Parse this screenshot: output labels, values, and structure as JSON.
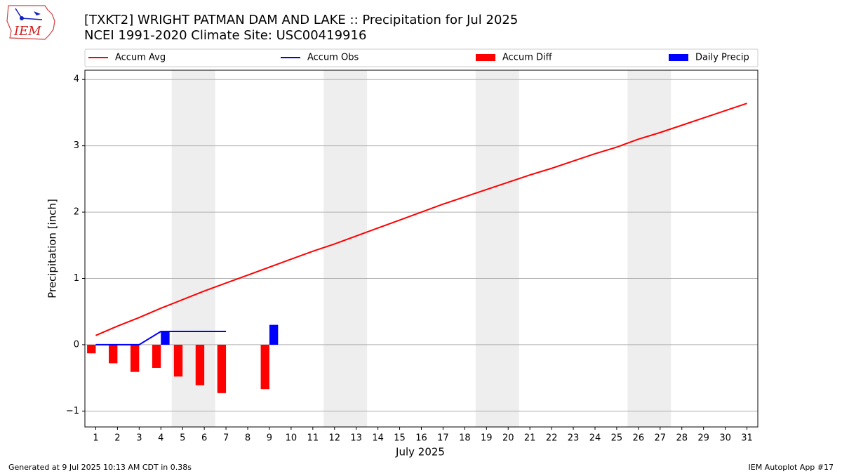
{
  "chart_data": {
    "type": "combo",
    "title": "[TXKT2] WRIGHT PATMAN DAM AND LAKE :: Precipitation for Jul 2025",
    "subtitle": "NCEI 1991-2020 Climate Site: USC00419916",
    "xlabel": "July 2025",
    "ylabel": "Precipitation [inch]",
    "x": [
      1,
      2,
      3,
      4,
      5,
      6,
      7,
      8,
      9,
      10,
      11,
      12,
      13,
      14,
      15,
      16,
      17,
      18,
      19,
      20,
      21,
      22,
      23,
      24,
      25,
      26,
      27,
      28,
      29,
      30,
      31
    ],
    "series": [
      {
        "name": "Accum Avg",
        "kind": "line",
        "color": "#ff0000",
        "values": [
          0.14,
          0.28,
          0.41,
          0.55,
          0.68,
          0.81,
          0.93,
          1.05,
          1.17,
          1.29,
          1.41,
          1.52,
          1.64,
          1.76,
          1.88,
          2.0,
          2.12,
          2.23,
          2.34,
          2.45,
          2.56,
          2.66,
          2.77,
          2.88,
          2.98,
          3.1,
          3.2,
          3.31,
          3.42,
          3.53,
          3.64
        ]
      },
      {
        "name": "Accum Obs",
        "kind": "line",
        "color": "#0000ff",
        "values": [
          0,
          0,
          0,
          0.2,
          0.2,
          0.2,
          0.2,
          null,
          null,
          null,
          null,
          null,
          null,
          null,
          null,
          null,
          null,
          null,
          null,
          null,
          null,
          null,
          null,
          null,
          null,
          null,
          null,
          null,
          null,
          null,
          null
        ]
      },
      {
        "name": "Accum Diff",
        "kind": "bar",
        "color": "#ff0000",
        "values": [
          -0.13,
          -0.28,
          -0.41,
          -0.35,
          -0.48,
          -0.61,
          -0.73,
          null,
          -0.67,
          null,
          null,
          null,
          null,
          null,
          null,
          null,
          null,
          null,
          null,
          null,
          null,
          null,
          null,
          null,
          null,
          null,
          null,
          null,
          null,
          null,
          null
        ]
      },
      {
        "name": "Daily Precip",
        "kind": "bar",
        "color": "#0000ff",
        "values": [
          0,
          0,
          0,
          0.2,
          0,
          0,
          0,
          0,
          0.3,
          null,
          null,
          null,
          null,
          null,
          null,
          null,
          null,
          null,
          null,
          null,
          null,
          null,
          null,
          null,
          null,
          null,
          null,
          null,
          null,
          null,
          null
        ]
      }
    ],
    "xlim": [
      0.5,
      31.5
    ],
    "xticks": [
      1,
      2,
      3,
      4,
      5,
      6,
      7,
      8,
      9,
      10,
      11,
      12,
      13,
      14,
      15,
      16,
      17,
      18,
      19,
      20,
      21,
      22,
      23,
      24,
      25,
      26,
      27,
      28,
      29,
      30,
      31
    ],
    "ylim": [
      -1.24,
      4.14
    ],
    "yticks": [
      {
        "value": -1,
        "label": "−1"
      },
      0,
      1,
      2,
      3,
      4
    ],
    "grid": true,
    "shaded_spans": [
      [
        4.5,
        6.5
      ],
      [
        11.5,
        13.5
      ],
      [
        18.5,
        20.5
      ],
      [
        25.5,
        27.5
      ]
    ],
    "legend": "top"
  },
  "logo_text": "IEM",
  "footer_left": "Generated at 9 Jul 2025 10:13 AM CDT in 0.38s",
  "footer_right": "IEM Autoplot App #17"
}
